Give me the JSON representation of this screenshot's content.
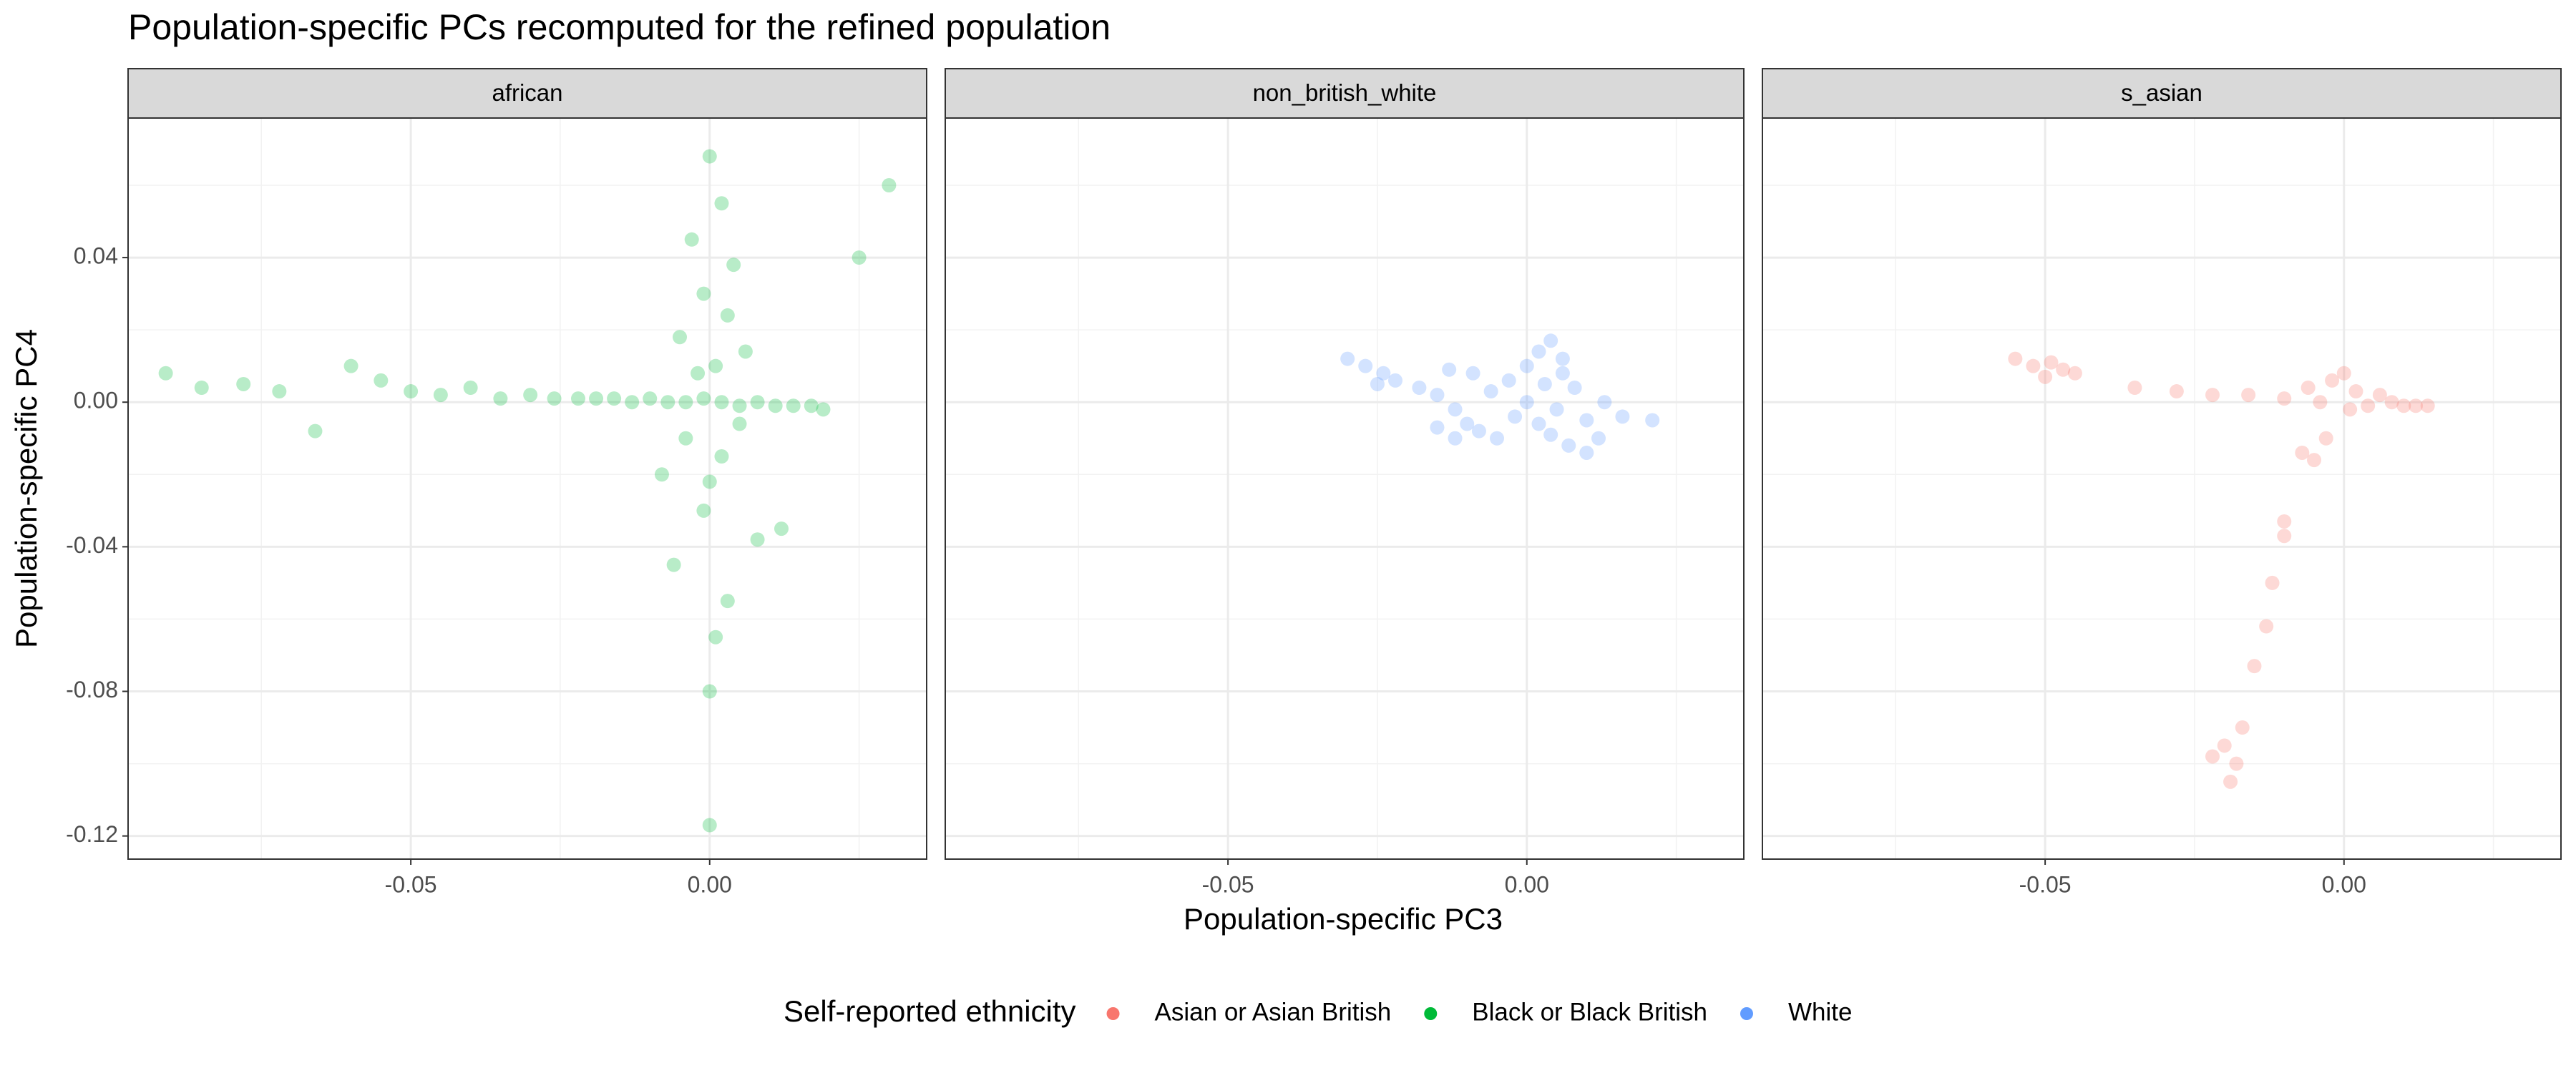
{
  "chart_data": {
    "type": "scatter",
    "title": "Population-specific PCs recomputed for the refined population",
    "xlabel": "Population-specific PC3",
    "ylabel": "Population-specific PC4",
    "xlim": [
      -0.0973,
      0.0363
    ],
    "ylim": [
      -0.1264,
      0.0786
    ],
    "xticks": [
      -0.05,
      {
        "value": 0,
        "label": "0.00"
      }
    ],
    "yticks": [
      0.04,
      {
        "value": 0,
        "label": "0.00"
      },
      -0.04,
      -0.08,
      -0.12
    ],
    "xminor": [
      -0.075,
      -0.025,
      0.025
    ],
    "yminor": [
      0.06,
      0.02,
      -0.02,
      -0.06,
      -0.1
    ],
    "grid": true,
    "legend": {
      "position": "bottom",
      "title": "Self-reported ethnicity",
      "entries": [
        {
          "name": "Asian or Asian British",
          "color": "#f8766d"
        },
        {
          "name": "Black or Black British",
          "color": "#00ba38"
        },
        {
          "name": "White",
          "color": "#619cff"
        }
      ]
    },
    "panels": [
      {
        "label": "african",
        "color": "#00ba38",
        "x": [
          -0.091,
          -0.085,
          -0.078,
          -0.072,
          -0.066,
          -0.06,
          -0.055,
          -0.05,
          -0.045,
          -0.04,
          -0.035,
          -0.03,
          -0.026,
          -0.022,
          -0.019,
          -0.016,
          -0.013,
          -0.01,
          -0.007,
          -0.004,
          -0.001,
          0.002,
          0.005,
          0.008,
          0.011,
          0.014,
          0.017,
          0.019,
          0.0,
          0.002,
          -0.003,
          0.004,
          -0.001,
          0.003,
          -0.005,
          0.006,
          0.001,
          -0.002,
          0.005,
          -0.004,
          0.002,
          0.0,
          -0.001,
          0.008,
          -0.006,
          0.003,
          0.012,
          -0.008,
          0.001,
          0.025,
          0.03,
          0.0,
          0.0
        ],
        "y": [
          0.008,
          0.004,
          0.005,
          0.003,
          -0.008,
          0.01,
          0.006,
          0.003,
          0.002,
          0.004,
          0.001,
          0.002,
          0.001,
          0.001,
          0.001,
          0.001,
          0.0,
          0.001,
          0.0,
          0.0,
          0.001,
          0.0,
          -0.001,
          0.0,
          -0.001,
          -0.001,
          -0.001,
          -0.002,
          0.068,
          0.055,
          0.045,
          0.038,
          0.03,
          0.024,
          0.018,
          0.014,
          0.01,
          0.008,
          -0.006,
          -0.01,
          -0.015,
          -0.022,
          -0.03,
          -0.038,
          -0.045,
          -0.055,
          -0.035,
          -0.02,
          -0.065,
          0.04,
          0.06,
          -0.08,
          -0.117
        ]
      },
      {
        "label": "non_british_white",
        "color": "#619cff",
        "x": [
          -0.03,
          -0.027,
          -0.024,
          -0.022,
          -0.025,
          -0.018,
          -0.015,
          -0.012,
          -0.01,
          -0.008,
          -0.005,
          -0.012,
          -0.015,
          -0.006,
          -0.003,
          0.0,
          0.002,
          0.004,
          0.006,
          0.003,
          0.0,
          -0.002,
          0.002,
          0.005,
          0.008,
          0.01,
          0.012,
          0.01,
          0.007,
          0.013,
          0.016,
          0.021,
          -0.009,
          -0.013,
          0.006,
          0.004
        ],
        "y": [
          0.012,
          0.01,
          0.008,
          0.006,
          0.005,
          0.004,
          0.002,
          -0.002,
          -0.006,
          -0.008,
          -0.01,
          -0.01,
          -0.007,
          0.003,
          0.006,
          0.01,
          0.014,
          0.017,
          0.012,
          0.005,
          0.0,
          -0.004,
          -0.006,
          -0.002,
          0.004,
          -0.005,
          -0.01,
          -0.014,
          -0.012,
          0.0,
          -0.004,
          -0.005,
          0.008,
          0.009,
          0.008,
          -0.009
        ]
      },
      {
        "label": "s_asian",
        "color": "#f8766d",
        "x": [
          -0.055,
          -0.052,
          -0.049,
          -0.047,
          -0.045,
          -0.05,
          -0.035,
          -0.028,
          -0.022,
          -0.016,
          -0.01,
          -0.006,
          -0.004,
          -0.002,
          0.0,
          0.002,
          0.004,
          0.006,
          0.008,
          0.01,
          0.012,
          0.014,
          0.001,
          -0.003,
          -0.005,
          -0.007,
          -0.01,
          -0.01,
          -0.012,
          -0.013,
          -0.015,
          -0.017,
          -0.02,
          -0.018,
          -0.022,
          -0.019
        ],
        "y": [
          0.012,
          0.01,
          0.011,
          0.009,
          0.008,
          0.007,
          0.004,
          0.003,
          0.002,
          0.002,
          0.001,
          0.004,
          0.0,
          0.006,
          0.008,
          0.003,
          -0.001,
          0.002,
          0.0,
          -0.001,
          -0.001,
          -0.001,
          -0.002,
          -0.01,
          -0.016,
          -0.014,
          -0.033,
          -0.037,
          -0.05,
          -0.062,
          -0.073,
          -0.09,
          -0.095,
          -0.1,
          -0.098,
          -0.105
        ]
      }
    ]
  }
}
